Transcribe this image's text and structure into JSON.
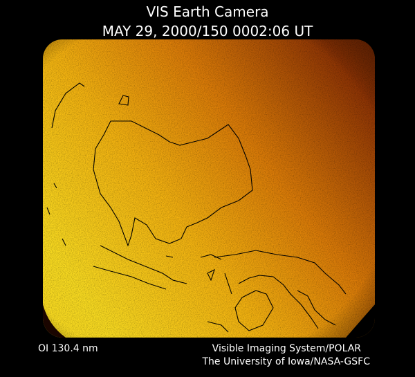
{
  "header": {
    "title": "VIS Earth Camera",
    "timestamp": "MAY 29, 2000/150 0002:06 UT"
  },
  "footer": {
    "wavelength": "OI 130.4 nm",
    "instrument": "Visible Imaging System/POLAR",
    "credit": "The University of Iowa/NASA-GSFC"
  }
}
